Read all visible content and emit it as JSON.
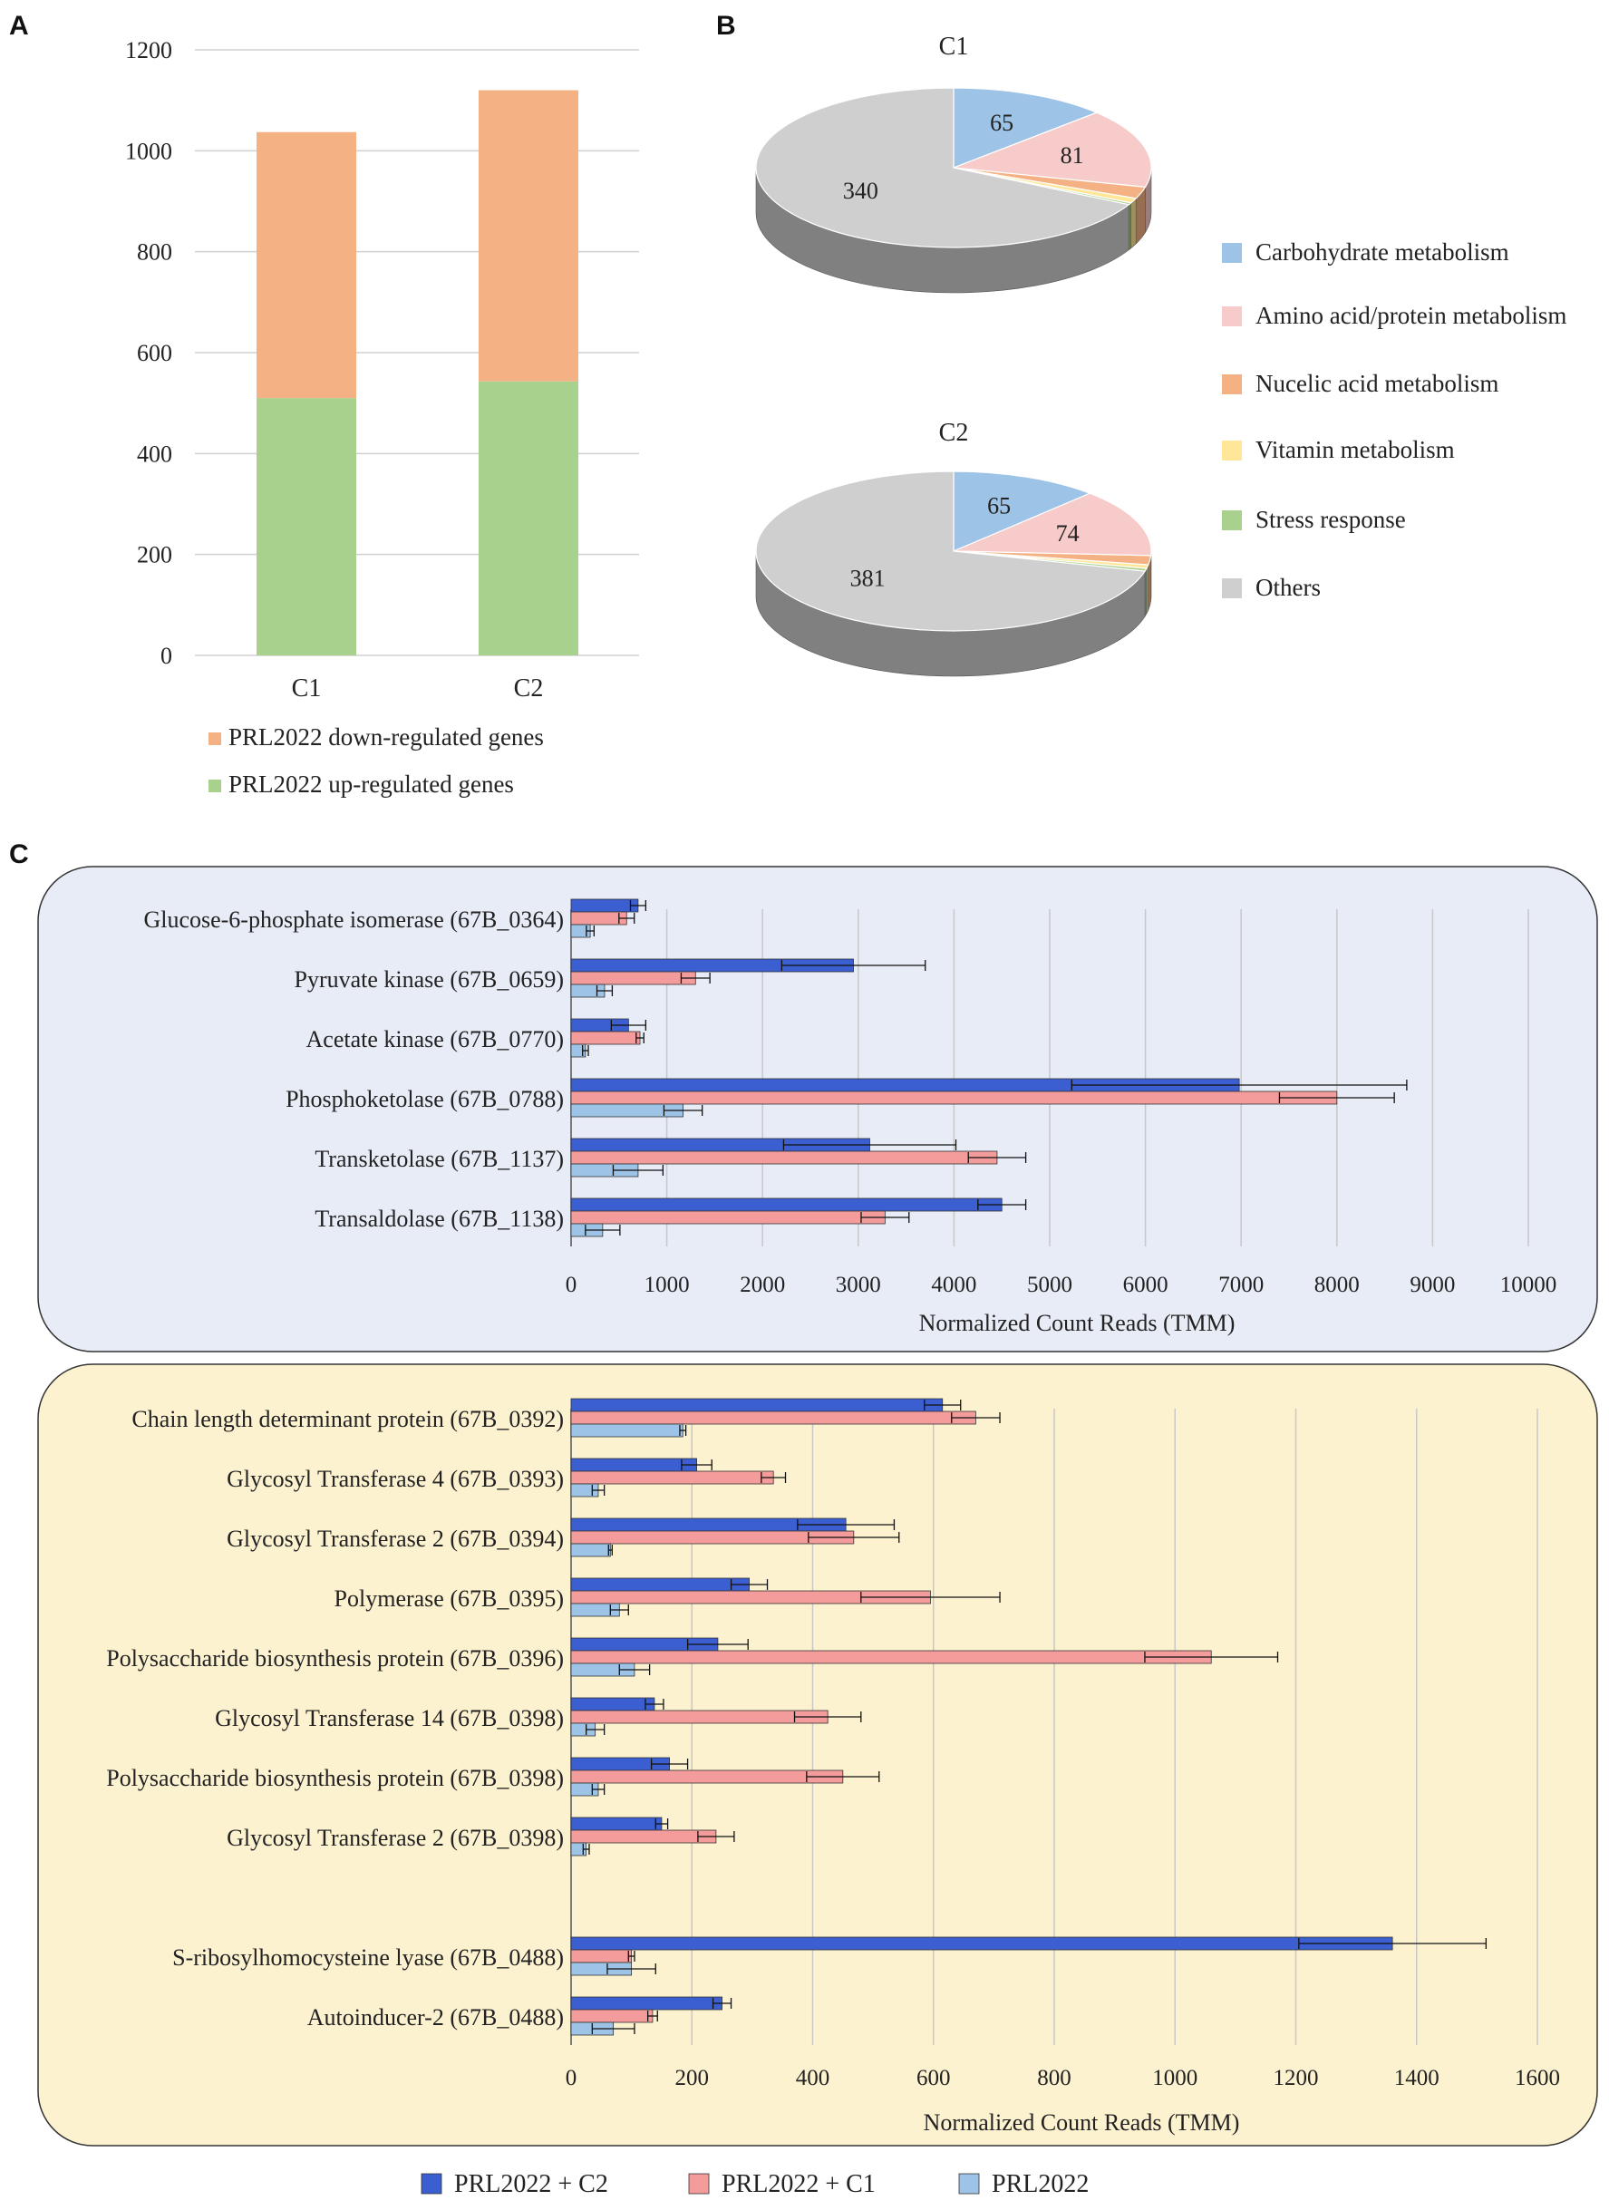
{
  "panels": {
    "a": "A",
    "b": "B",
    "c": "C"
  },
  "chart_data": [
    {
      "id": "A",
      "type": "bar",
      "stacked": true,
      "categories": [
        "C1",
        "C2"
      ],
      "series": [
        {
          "name": "PRL2022 up-regulated genes",
          "color": "#a9d18e",
          "values": [
            510,
            543
          ]
        },
        {
          "name": "PRL2022 down-regulated genes",
          "color": "#f4b183",
          "values": [
            527,
            577
          ]
        }
      ],
      "ylim": [
        0,
        1200
      ],
      "yticks": [
        "0",
        "200",
        "400",
        "600",
        "800",
        "1000",
        "1200"
      ],
      "grid": true,
      "legend": [
        {
          "name": "PRL2022 down-regulated genes",
          "color": "#f4b183"
        },
        {
          "name": "PRL2022 up-regulated genes",
          "color": "#a9d18e"
        }
      ]
    },
    {
      "id": "B",
      "type": "pie",
      "charts": [
        {
          "title": "C1",
          "slices": [
            {
              "category": "Carbohydrate metabolism",
              "value": 65,
              "label": "65"
            },
            {
              "category": "Amino acid/protein metabolism",
              "value": 81,
              "label": "81"
            },
            {
              "category": "Nucelic acid metabolism",
              "value": 12,
              "label": ""
            },
            {
              "category": "Vitamin metabolism",
              "value": 5,
              "label": ""
            },
            {
              "category": "Stress response",
              "value": 2,
              "label": ""
            },
            {
              "category": "Others",
              "value": 340,
              "label": "340"
            }
          ]
        },
        {
          "title": "C2",
          "slices": [
            {
              "category": "Carbohydrate metabolism",
              "value": 65,
              "label": "65"
            },
            {
              "category": "Amino acid/protein metabolism",
              "value": 74,
              "label": "74"
            },
            {
              "category": "Nucelic acid metabolism",
              "value": 10,
              "label": ""
            },
            {
              "category": "Vitamin metabolism",
              "value": 4,
              "label": ""
            },
            {
              "category": "Stress response",
              "value": 3,
              "label": ""
            },
            {
              "category": "Others",
              "value": 381,
              "label": "381"
            }
          ]
        }
      ],
      "legend": [
        {
          "name": "Carbohydrate metabolism",
          "color": "#9dc3e6"
        },
        {
          "name": "Amino acid/protein metabolism",
          "color": "#f8cbcb"
        },
        {
          "name": "Nucelic acid metabolism",
          "color": "#f4b183"
        },
        {
          "name": "Vitamin metabolism",
          "color": "#ffe699"
        },
        {
          "name": "Stress response",
          "color": "#a9d18e"
        },
        {
          "name": "Others",
          "color": "#cfcfcf"
        }
      ]
    },
    {
      "id": "C-top",
      "type": "bar",
      "orientation": "horizontal",
      "xlabel": "Normalized Count Reads (TMM)",
      "xlim": [
        0,
        10000
      ],
      "xticks": [
        "0",
        "1000",
        "2000",
        "3000",
        "4000",
        "5000",
        "6000",
        "7000",
        "8000",
        "9000",
        "10000"
      ],
      "categories": [
        "Glucose-6-phosphate isomerase (67B_0364)",
        "Pyruvate kinase (67B_0659)",
        "Acetate kinase (67B_0770)",
        "Phosphoketolase (67B_0788)",
        "Transketolase (67B_1137)",
        "Transaldolase (67B_1138)"
      ],
      "series": [
        {
          "name": "PRL2022 + C2",
          "values": [
            700,
            2950,
            600,
            6980,
            3120,
            4500
          ],
          "errors": [
            80,
            750,
            180,
            1750,
            900,
            250
          ]
        },
        {
          "name": "PRL2022 + C1",
          "values": [
            580,
            1300,
            720,
            8000,
            4450,
            3280
          ],
          "errors": [
            80,
            150,
            40,
            600,
            300,
            250
          ]
        },
        {
          "name": "PRL2022",
          "values": [
            200,
            350,
            150,
            1170,
            700,
            330
          ],
          "errors": [
            40,
            80,
            30,
            200,
            260,
            180
          ]
        }
      ]
    },
    {
      "id": "C-bottom",
      "type": "bar",
      "orientation": "horizontal",
      "xlabel": "Normalized Count Reads (TMM)",
      "xlim": [
        0,
        1600
      ],
      "xticks": [
        "0",
        "200",
        "400",
        "600",
        "800",
        "1000",
        "1200",
        "1400",
        "1600"
      ],
      "categories": [
        "Chain length determinant protein (67B_0392)",
        "Glycosyl Transferase 4 (67B_0393)",
        "Glycosyl Transferase 2 (67B_0394)",
        "Polymerase (67B_0395)",
        "Polysaccharide biosynthesis protein (67B_0396)",
        "Glycosyl Transferase 14 (67B_0398)",
        "Polysaccharide biosynthesis protein (67B_0398)",
        "Glycosyl Transferase 2 (67B_0398)",
        "",
        "S-ribosylhomocysteine lyase (67B_0488)",
        "Autoinducer-2 (67B_0488)"
      ],
      "series": [
        {
          "name": "PRL2022 + C2",
          "values": [
            615,
            208,
            455,
            295,
            243,
            138,
            163,
            150,
            null,
            1360,
            250
          ],
          "errors": [
            30,
            25,
            80,
            30,
            50,
            15,
            30,
            10,
            null,
            155,
            15
          ]
        },
        {
          "name": "PRL2022 + C1",
          "values": [
            670,
            335,
            468,
            595,
            1060,
            425,
            450,
            240,
            null,
            100,
            135
          ],
          "errors": [
            40,
            20,
            75,
            115,
            110,
            55,
            60,
            30,
            null,
            5,
            8
          ]
        },
        {
          "name": "PRL2022",
          "values": [
            185,
            45,
            65,
            80,
            105,
            40,
            45,
            25,
            null,
            100,
            70
          ],
          "errors": [
            5,
            10,
            3,
            15,
            25,
            15,
            10,
            5,
            null,
            40,
            35
          ]
        }
      ]
    }
  ],
  "legend_c": [
    {
      "name": "PRL2022 + C2",
      "color": "#3b5fd1"
    },
    {
      "name": "PRL2022 + C1",
      "color": "#f49b9b"
    },
    {
      "name": "PRL2022",
      "color": "#9dc3e6"
    }
  ]
}
